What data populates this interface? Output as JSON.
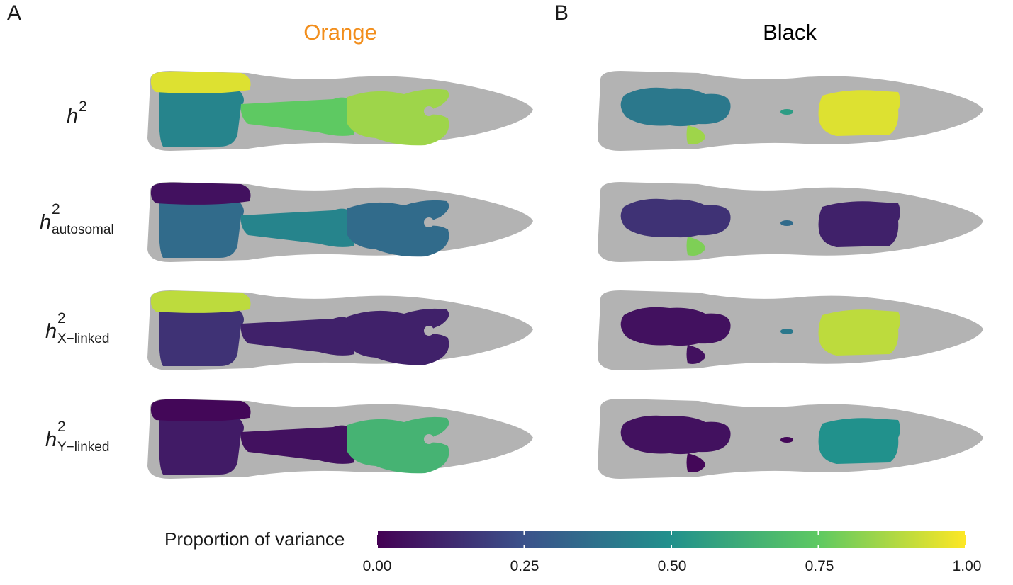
{
  "panels": [
    {
      "letter": "A",
      "title": "Orange",
      "title_color": "#f28e1c"
    },
    {
      "letter": "B",
      "title": "Black",
      "title_color": "#000000"
    }
  ],
  "rows": [
    {
      "symbol": "h",
      "sup": "2",
      "sub": ""
    },
    {
      "symbol": "h",
      "sup": "2",
      "sub": "autosomal"
    },
    {
      "symbol": "h",
      "sup": "2",
      "sub": "X−linked"
    },
    {
      "symbol": "h",
      "sup": "2",
      "sub": "Y−linked"
    }
  ],
  "colorbar": {
    "title": "Proportion of variance",
    "ticks": [
      "0.00",
      "0.25",
      "0.50",
      "0.75",
      "1.00"
    ],
    "range": [
      0,
      1
    ],
    "colormap": "viridis",
    "colors": [
      "#440154",
      "#3b528b",
      "#21918c",
      "#5ec962",
      "#fde725"
    ]
  },
  "heatmap_values": {
    "Orange": [
      {
        "dorsal_band": 0.95,
        "anterior_body": 0.45,
        "peduncle": 0.75,
        "caudal": 0.85
      },
      {
        "dorsal_band": 0.05,
        "anterior_body": 0.35,
        "peduncle": 0.45,
        "caudal": 0.35
      },
      {
        "dorsal_band": 0.9,
        "anterior_body": 0.15,
        "peduncle": 0.1,
        "caudal": 0.1
      },
      {
        "dorsal_band": 0.02,
        "anterior_body": 0.08,
        "peduncle": 0.05,
        "caudal": 0.65
      }
    ],
    "Black": [
      {
        "anterior_blotch": 0.4,
        "ventral_spot": 0.85,
        "central_dot": 0.55,
        "posterior_blotch": 0.95
      },
      {
        "anterior_blotch": 0.15,
        "ventral_spot": 0.8,
        "central_dot": 0.35,
        "posterior_blotch": 0.1
      },
      {
        "anterior_blotch": 0.05,
        "ventral_spot": 0.05,
        "central_dot": 0.4,
        "posterior_blotch": 0.9
      },
      {
        "anterior_blotch": 0.05,
        "ventral_spot": 0.02,
        "central_dot": 0.02,
        "posterior_blotch": 0.5
      }
    ]
  }
}
